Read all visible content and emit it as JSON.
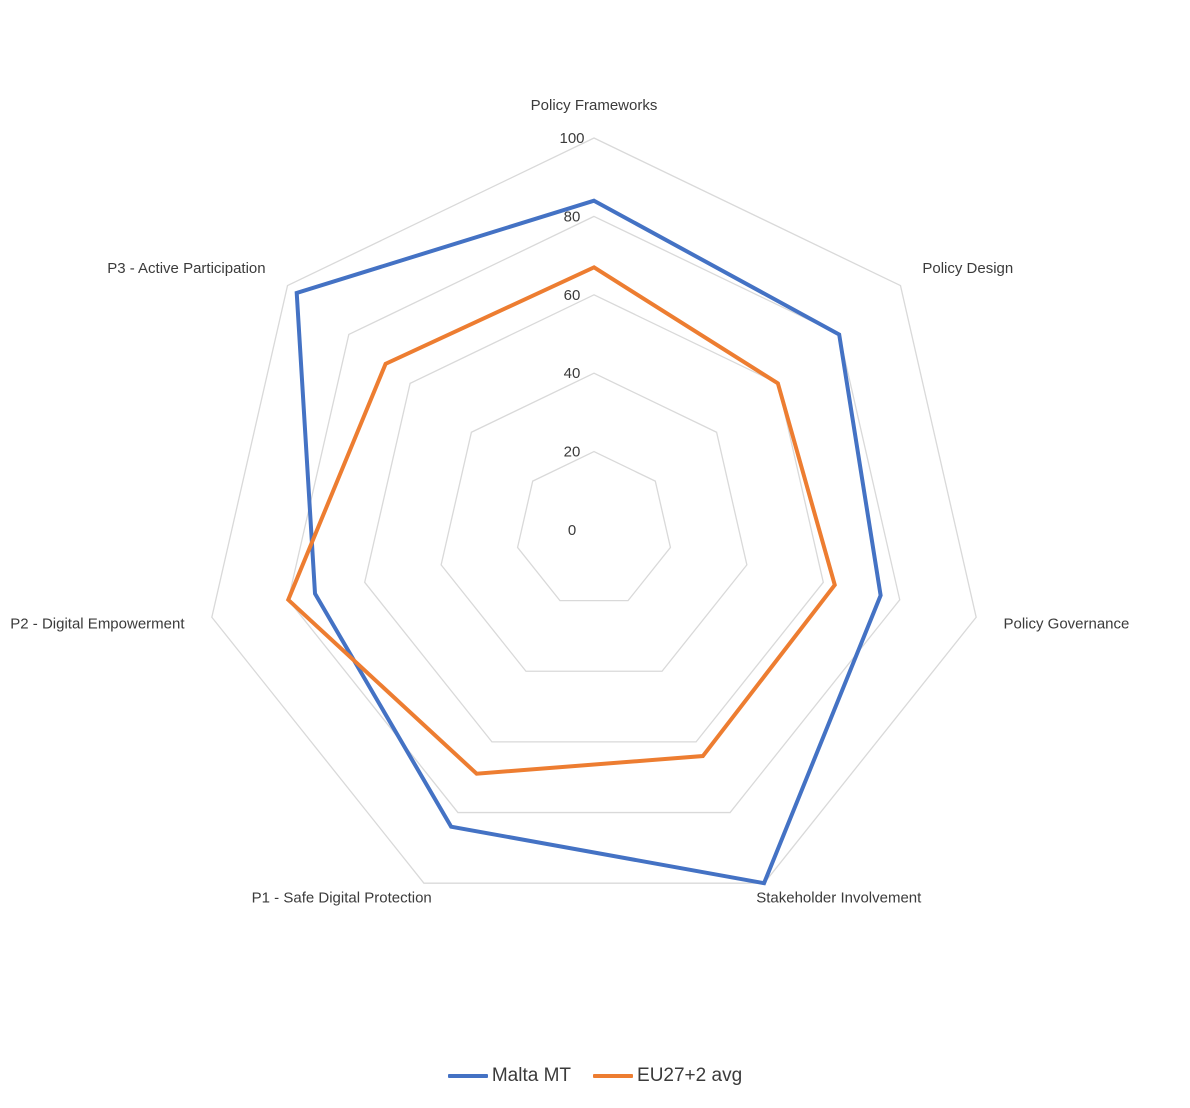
{
  "chart_data": {
    "type": "radar",
    "categories": [
      "Policy Frameworks",
      "Policy Design",
      "Policy Governance",
      "Stakeholder Involvement",
      "P1 - Safe Digital Protection",
      "P2 - Digital Empowerment",
      "P3 - Active Participation"
    ],
    "rlim": [
      0,
      100
    ],
    "ticks": [
      "0",
      "20",
      "40",
      "60",
      "80",
      "100"
    ],
    "grid": true,
    "legend_position": "bottom",
    "series": [
      {
        "name": "Malta MT",
        "color": "#4472C4",
        "values": [
          84,
          80,
          75,
          100,
          84,
          73,
          97
        ]
      },
      {
        "name": "EU27+2 avg",
        "color": "#ED7D31",
        "values": [
          67,
          60,
          63,
          64,
          69,
          80,
          68
        ]
      }
    ]
  }
}
